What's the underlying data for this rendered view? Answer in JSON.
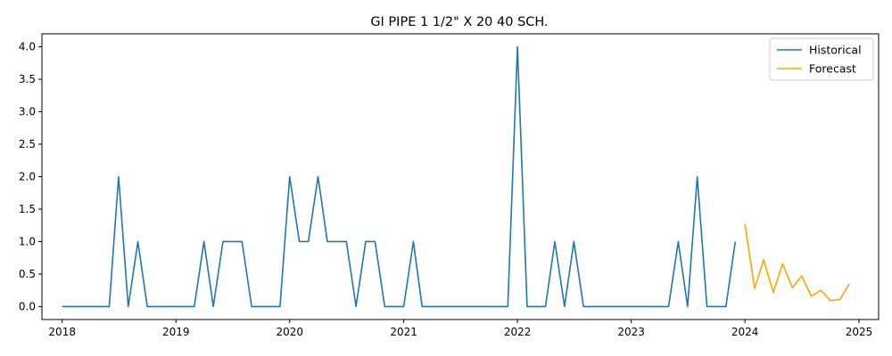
{
  "chart_data": {
    "type": "line",
    "title": "GI PIPE 1 1/2\" X 20 40 SCH.",
    "xlabel": "",
    "ylabel": "",
    "x_axis_type": "date",
    "xlim": [
      "2017-10-28",
      "2025-03-05"
    ],
    "ylim": [
      -0.2,
      4.2
    ],
    "x_ticks": [
      "2018-01-01",
      "2019-01-01",
      "2020-01-01",
      "2021-01-01",
      "2022-01-01",
      "2023-01-01",
      "2024-01-01",
      "2025-01-01"
    ],
    "x_tick_labels": [
      "2018",
      "2019",
      "2020",
      "2021",
      "2022",
      "2023",
      "2024",
      "2025"
    ],
    "y_ticks": [
      0.0,
      0.5,
      1.0,
      1.5,
      2.0,
      2.5,
      3.0,
      3.5,
      4.0
    ],
    "y_tick_labels": [
      "0.0",
      "0.5",
      "1.0",
      "1.5",
      "2.0",
      "2.5",
      "3.0",
      "3.5",
      "4.0"
    ],
    "grid": false,
    "legend_position": "top-right",
    "series": [
      {
        "name": "Historical",
        "color": "#1f77b4",
        "x": [
          "2018-01-01",
          "2018-02-01",
          "2018-03-01",
          "2018-04-01",
          "2018-05-01",
          "2018-06-01",
          "2018-07-01",
          "2018-08-01",
          "2018-09-01",
          "2018-10-01",
          "2018-11-01",
          "2018-12-01",
          "2019-01-01",
          "2019-02-01",
          "2019-03-01",
          "2019-04-01",
          "2019-05-01",
          "2019-06-01",
          "2019-07-01",
          "2019-08-01",
          "2019-09-01",
          "2019-10-01",
          "2019-11-01",
          "2019-12-01",
          "2020-01-01",
          "2020-02-01",
          "2020-03-01",
          "2020-04-01",
          "2020-05-01",
          "2020-06-01",
          "2020-07-01",
          "2020-08-01",
          "2020-09-01",
          "2020-10-01",
          "2020-11-01",
          "2020-12-01",
          "2021-01-01",
          "2021-02-01",
          "2021-03-01",
          "2021-04-01",
          "2021-05-01",
          "2021-06-01",
          "2021-07-01",
          "2021-08-01",
          "2021-09-01",
          "2021-10-01",
          "2021-11-01",
          "2021-12-01",
          "2022-01-01",
          "2022-02-01",
          "2022-03-01",
          "2022-04-01",
          "2022-05-01",
          "2022-06-01",
          "2022-07-01",
          "2022-08-01",
          "2022-09-01",
          "2022-10-01",
          "2022-11-01",
          "2022-12-01",
          "2023-01-01",
          "2023-02-01",
          "2023-03-01",
          "2023-04-01",
          "2023-05-01",
          "2023-06-01",
          "2023-07-01",
          "2023-08-01",
          "2023-09-01",
          "2023-10-01",
          "2023-11-01",
          "2023-12-01"
        ],
        "y": [
          0,
          0,
          0,
          0,
          0,
          0,
          2,
          0,
          1,
          0,
          0,
          0,
          0,
          0,
          0,
          1,
          0,
          1,
          1,
          1,
          0,
          0,
          0,
          0,
          2,
          1,
          1,
          2,
          1,
          1,
          1,
          0,
          1,
          1,
          0,
          0,
          0,
          1,
          0,
          0,
          0,
          0,
          0,
          0,
          0,
          0,
          0,
          0,
          4,
          0,
          0,
          0,
          1,
          0,
          1,
          0,
          0,
          0,
          0,
          0,
          0,
          0,
          0,
          0,
          0,
          1,
          0,
          2,
          0,
          0,
          0,
          1
        ]
      },
      {
        "name": "Forecast",
        "color": "#ffa500",
        "x": [
          "2024-01-01",
          "2024-02-01",
          "2024-03-01",
          "2024-04-01",
          "2024-05-01",
          "2024-06-01",
          "2024-07-01",
          "2024-08-01",
          "2024-09-01",
          "2024-10-01",
          "2024-11-01",
          "2024-12-01"
        ],
        "y": [
          1.27,
          0.28,
          0.72,
          0.22,
          0.66,
          0.29,
          0.47,
          0.16,
          0.25,
          0.09,
          0.11,
          0.35
        ]
      }
    ]
  }
}
